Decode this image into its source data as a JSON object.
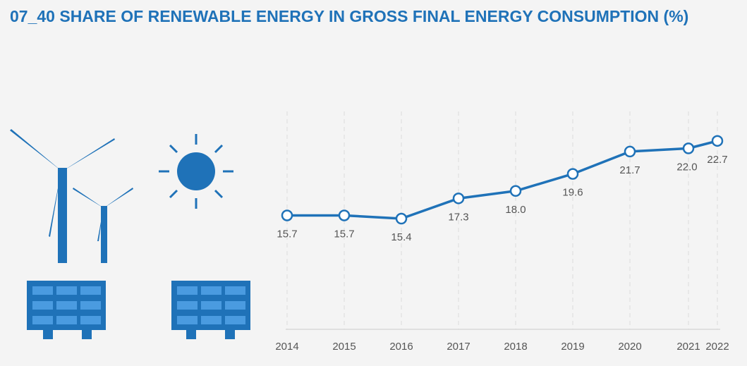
{
  "title": "07_40 SHARE OF RENEWABLE ENERGY IN GROSS FINAL ENERGY CONSUMPTION (%)",
  "colors": {
    "accent": "#1f72b8",
    "background": "#f4f4f4",
    "label": "#555555",
    "grid": "#dddddd"
  },
  "illustration": {
    "icons": [
      "wind-turbine-large-icon",
      "wind-turbine-small-icon",
      "sun-icon",
      "solar-panel-icon",
      "solar-panel-icon"
    ]
  },
  "chart_data": {
    "type": "line",
    "title": "07_40 SHARE OF RENEWABLE ENERGY IN GROSS FINAL ENERGY CONSUMPTION (%)",
    "xlabel": "",
    "ylabel": "",
    "x": [
      "2014",
      "2015",
      "2016",
      "2017",
      "2018",
      "2019",
      "2020",
      "2021",
      "2022"
    ],
    "values": [
      15.7,
      15.7,
      15.4,
      17.3,
      18.0,
      19.6,
      21.7,
      22.0,
      22.7
    ],
    "labels": [
      "15.7",
      "15.7",
      "15.4",
      "17.3",
      "18.0",
      "19.6",
      "21.7",
      "22.0",
      "22.7"
    ],
    "label_position": [
      "below",
      "below",
      "below",
      "below",
      "above",
      "below",
      "below",
      "below",
      "below"
    ],
    "ylim": [
      5,
      26
    ],
    "grid": "vertical-dashed",
    "legend": "none"
  }
}
